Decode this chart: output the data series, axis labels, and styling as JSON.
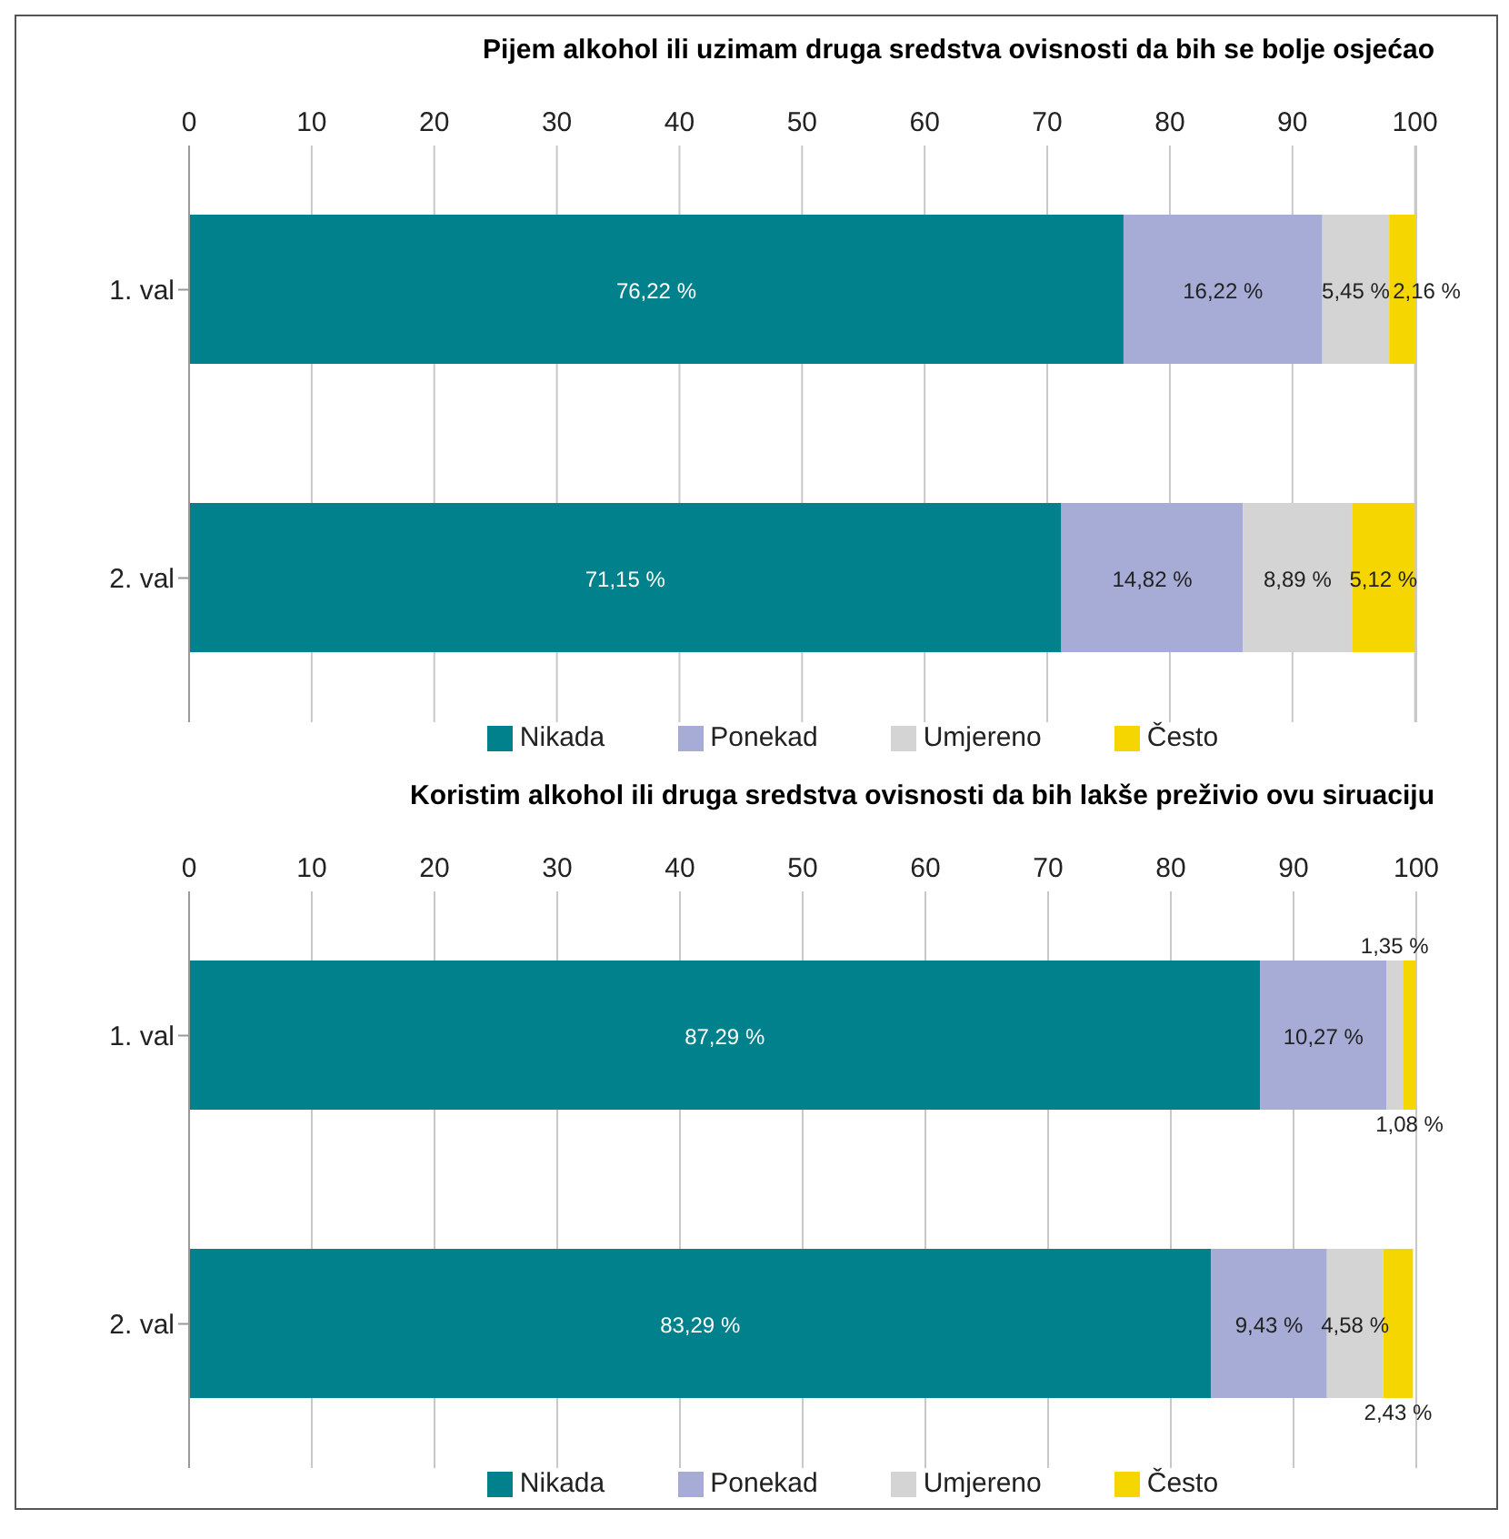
{
  "chart_data": [
    {
      "type": "bar",
      "orientation": "horizontal",
      "stacked": true,
      "title": "Pijem alkohol ili uzimam druga sredstva ovisnosti da bih se bolje osjećao",
      "categories": [
        "1. val",
        "2. val"
      ],
      "xlim": [
        0,
        100.1
      ],
      "xticks": [
        0,
        10,
        20,
        30,
        40,
        50,
        60,
        70,
        80,
        90,
        100
      ],
      "grid": "x",
      "legend": "bottom",
      "series": [
        {
          "name": "Nikada",
          "color": "#00818c",
          "values": [
            76.22,
            71.15
          ],
          "value_labels": [
            "76,22 %",
            "71,15 %"
          ]
        },
        {
          "name": "Ponekad",
          "color": "#a6acd6",
          "values": [
            16.22,
            14.82
          ],
          "value_labels": [
            "16,22 %",
            "14,82 %"
          ]
        },
        {
          "name": "Umjereno",
          "color": "#d4d4d4",
          "values": [
            5.45,
            8.89
          ],
          "value_labels": [
            "5,45 %",
            "8,89 %"
          ]
        },
        {
          "name": "Često",
          "color": "#f5d600",
          "values": [
            2.16,
            5.12
          ],
          "value_labels": [
            "2,16 %",
            "5,12 %"
          ]
        }
      ]
    },
    {
      "type": "bar",
      "orientation": "horizontal",
      "stacked": true,
      "title": "Koristim alkohol ili druga sredstva ovisnosti da bih lakše preživio ovu siruaciju",
      "categories": [
        "1. val",
        "2. val"
      ],
      "xlim": [
        0,
        100
      ],
      "xticks": [
        0,
        10,
        20,
        30,
        40,
        50,
        60,
        70,
        80,
        90,
        100
      ],
      "grid": "x",
      "legend": "bottom",
      "series": [
        {
          "name": "Nikada",
          "color": "#00818c",
          "values": [
            87.29,
            83.29
          ],
          "value_labels": [
            "87,29 %",
            "83,29 %"
          ]
        },
        {
          "name": "Ponekad",
          "color": "#a6acd6",
          "values": [
            10.27,
            9.43
          ],
          "value_labels": [
            "10,27 %",
            "9,43 %"
          ]
        },
        {
          "name": "Umjereno",
          "color": "#d4d4d4",
          "values": [
            1.35,
            4.58
          ],
          "value_labels": [
            "1,35 %",
            "4,58 %"
          ]
        },
        {
          "name": "Često",
          "color": "#f5d600",
          "values": [
            1.08,
            2.43
          ],
          "value_labels": [
            "1,08 %",
            "2,43 %"
          ]
        }
      ]
    }
  ]
}
